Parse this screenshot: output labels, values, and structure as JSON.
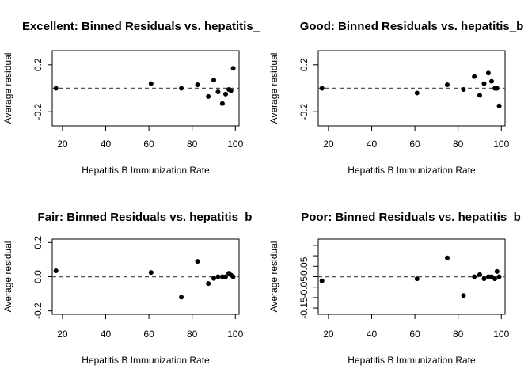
{
  "chart_data": [
    {
      "type": "scatter",
      "title": "Excellent: Binned Residuals vs. hepatitis_",
      "xlabel": "Hepatitis B Immunization Rate",
      "ylabel": "Average residual",
      "xlim": [
        17,
        100
      ],
      "ylim": [
        -0.32,
        0.32
      ],
      "xticks": [
        20,
        40,
        60,
        80,
        100
      ],
      "xtick_labels": [
        "20",
        "40",
        "60",
        "80",
        "100"
      ],
      "yticks": [
        -0.2,
        0.2
      ],
      "ytick_labels": [
        "-0.2",
        "0.2"
      ],
      "reference_line": 0,
      "points": [
        {
          "x": 17,
          "y": 0.0
        },
        {
          "x": 61,
          "y": 0.04
        },
        {
          "x": 75,
          "y": 0.0
        },
        {
          "x": 82.5,
          "y": 0.03
        },
        {
          "x": 87.5,
          "y": -0.07
        },
        {
          "x": 90,
          "y": 0.07
        },
        {
          "x": 92,
          "y": -0.03
        },
        {
          "x": 94,
          "y": -0.13
        },
        {
          "x": 95.5,
          "y": -0.05
        },
        {
          "x": 97,
          "y": -0.01
        },
        {
          "x": 98,
          "y": -0.02
        },
        {
          "x": 99,
          "y": 0.17
        }
      ]
    },
    {
      "type": "scatter",
      "title": "Good: Binned Residuals vs. hepatitis_b",
      "xlabel": "Hepatitis B Immunization Rate",
      "ylabel": "Average residual",
      "xlim": [
        17,
        100
      ],
      "ylim": [
        -0.32,
        0.32
      ],
      "xticks": [
        20,
        40,
        60,
        80,
        100
      ],
      "xtick_labels": [
        "20",
        "40",
        "60",
        "80",
        "100"
      ],
      "yticks": [
        -0.2,
        0.2
      ],
      "ytick_labels": [
        "-0.2",
        "0.2"
      ],
      "reference_line": 0,
      "points": [
        {
          "x": 17,
          "y": 0.0
        },
        {
          "x": 61,
          "y": -0.04
        },
        {
          "x": 75,
          "y": 0.03
        },
        {
          "x": 82.5,
          "y": -0.01
        },
        {
          "x": 87.5,
          "y": 0.1
        },
        {
          "x": 90,
          "y": -0.06
        },
        {
          "x": 92,
          "y": 0.04
        },
        {
          "x": 94,
          "y": 0.13
        },
        {
          "x": 95.5,
          "y": 0.06
        },
        {
          "x": 97,
          "y": 0.0
        },
        {
          "x": 98,
          "y": 0.0
        },
        {
          "x": 99,
          "y": -0.15
        }
      ]
    },
    {
      "type": "scatter",
      "title": "Fair: Binned Residuals vs. hepatitis_b",
      "xlabel": "Hepatitis B Immunization Rate",
      "ylabel": "Average residual",
      "xlim": [
        17,
        100
      ],
      "ylim": [
        -0.22,
        0.22
      ],
      "xticks": [
        20,
        40,
        60,
        80,
        100
      ],
      "xtick_labels": [
        "20",
        "40",
        "60",
        "80",
        "100"
      ],
      "yticks": [
        -0.2,
        0.0,
        0.2
      ],
      "ytick_labels": [
        "-0.2",
        "0.0",
        "0.2"
      ],
      "reference_line": 0,
      "points": [
        {
          "x": 17,
          "y": 0.035
        },
        {
          "x": 61,
          "y": 0.025
        },
        {
          "x": 75,
          "y": -0.12
        },
        {
          "x": 82.5,
          "y": 0.09
        },
        {
          "x": 87.5,
          "y": -0.04
        },
        {
          "x": 90,
          "y": -0.01
        },
        {
          "x": 92,
          "y": 0.0
        },
        {
          "x": 94,
          "y": 0.0
        },
        {
          "x": 95.5,
          "y": 0.0
        },
        {
          "x": 97,
          "y": 0.02
        },
        {
          "x": 98,
          "y": 0.01
        },
        {
          "x": 99,
          "y": 0.0
        }
      ]
    },
    {
      "type": "scatter",
      "title": "Poor: Binned Residuals vs. hepatitis_b",
      "xlabel": "Hepatitis B Immunization Rate",
      "ylabel": "Average residual",
      "xlim": [
        17,
        100
      ],
      "ylim": [
        -0.18,
        0.18
      ],
      "xticks": [
        20,
        40,
        60,
        80,
        100
      ],
      "xtick_labels": [
        "20",
        "40",
        "60",
        "80",
        "100"
      ],
      "yticks": [
        -0.15,
        -0.05,
        0.05
      ],
      "ytick_labels": [
        "-0.15",
        "-0.05",
        "0.05"
      ],
      "yminor_ticks": [
        -0.1,
        0.0,
        0.1,
        0.15
      ],
      "reference_line": 0,
      "points": [
        {
          "x": 17,
          "y": -0.02
        },
        {
          "x": 61,
          "y": -0.01
        },
        {
          "x": 75,
          "y": 0.09
        },
        {
          "x": 82.5,
          "y": -0.09
        },
        {
          "x": 87.5,
          "y": 0.0
        },
        {
          "x": 90,
          "y": 0.01
        },
        {
          "x": 92,
          "y": -0.01
        },
        {
          "x": 94,
          "y": 0.0
        },
        {
          "x": 95.5,
          "y": 0.0
        },
        {
          "x": 97,
          "y": -0.01
        },
        {
          "x": 98,
          "y": 0.025
        },
        {
          "x": 99,
          "y": 0.0
        }
      ]
    }
  ]
}
